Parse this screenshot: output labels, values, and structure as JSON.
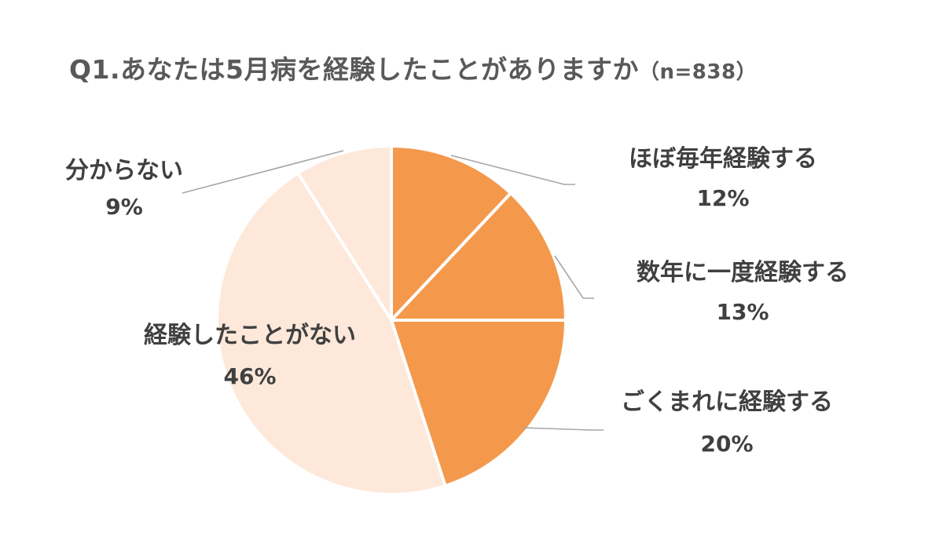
{
  "title": {
    "main": "Q1.あなたは5月病を経験したことがありますか",
    "sub": "（n=838）"
  },
  "chart_data": {
    "type": "pie",
    "title": "Q1.あなたは5月病を経験したことがありますか（n=838）",
    "sample_size": 838,
    "start_angle_deg": 0,
    "direction": "clockwise",
    "slices": [
      {
        "label": "ほぼ毎年経験する",
        "value": 12,
        "value_label": "12%",
        "color": "#f4994c"
      },
      {
        "label": "数年に一度経験する",
        "value": 13,
        "value_label": "13%",
        "color": "#f4994c"
      },
      {
        "label": "ごくまれに経験する",
        "value": 20,
        "value_label": "20%",
        "color": "#f4994c"
      },
      {
        "label": "経験したことがない",
        "value": 46,
        "value_label": "46%",
        "color": "#fde8da"
      },
      {
        "label": "分からない",
        "value": 9,
        "value_label": "9%",
        "color": "#fde8da"
      }
    ],
    "slice_border_color": "#ffffff",
    "leader_line_color": "#a6a6a6"
  }
}
